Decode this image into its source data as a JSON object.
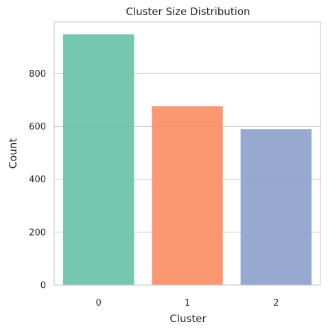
{
  "chart_data": {
    "type": "bar",
    "title": "Cluster Size Distribution",
    "xlabel": "Cluster",
    "ylabel": "Count",
    "categories": [
      "0",
      "1",
      "2"
    ],
    "values": [
      948,
      676,
      590
    ],
    "colors": [
      "#66c2a5",
      "#fc8d62",
      "#8da0cb"
    ],
    "bar_opacity": 0.9,
    "ylim": [
      0,
      995
    ],
    "yticks": [
      0,
      200,
      400,
      600,
      800
    ],
    "grid": true,
    "grid_axis": "y",
    "legend": "none"
  }
}
